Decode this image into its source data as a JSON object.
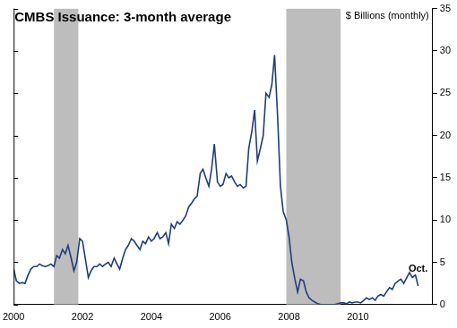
{
  "chart_data": {
    "type": "line",
    "title": "CMBS Issuance: 3-month average",
    "y_label": "$ Billions (monthly)",
    "annotation": "Oct.",
    "color": "#1f3d7a",
    "grid": false,
    "legend": false,
    "xlim": [
      2000,
      2012.17
    ],
    "xticks": [
      2000,
      2002,
      2004,
      2006,
      2008,
      2010
    ],
    "ylim": [
      0,
      35
    ],
    "yticks": [
      0,
      5,
      10,
      15,
      20,
      25,
      30,
      35
    ],
    "shaded_ranges": [
      [
        2001.17,
        2001.88
      ],
      [
        2007.92,
        2009.5
      ]
    ],
    "x": [
      2000,
      2000.08,
      2000.17,
      2000.25,
      2000.33,
      2000.42,
      2000.5,
      2000.58,
      2000.67,
      2000.75,
      2000.83,
      2000.92,
      2001,
      2001.08,
      2001.17,
      2001.25,
      2001.33,
      2001.42,
      2001.5,
      2001.58,
      2001.67,
      2001.75,
      2001.83,
      2001.92,
      2002,
      2002.08,
      2002.17,
      2002.25,
      2002.33,
      2002.42,
      2002.5,
      2002.58,
      2002.67,
      2002.75,
      2002.83,
      2002.92,
      2003,
      2003.08,
      2003.17,
      2003.25,
      2003.33,
      2003.42,
      2003.5,
      2003.58,
      2003.67,
      2003.75,
      2003.83,
      2003.92,
      2004,
      2004.08,
      2004.17,
      2004.25,
      2004.33,
      2004.42,
      2004.5,
      2004.58,
      2004.67,
      2004.75,
      2004.83,
      2004.92,
      2005,
      2005.08,
      2005.17,
      2005.25,
      2005.33,
      2005.42,
      2005.5,
      2005.58,
      2005.67,
      2005.75,
      2005.83,
      2005.92,
      2006,
      2006.08,
      2006.17,
      2006.25,
      2006.33,
      2006.42,
      2006.5,
      2006.58,
      2006.67,
      2006.75,
      2006.83,
      2006.92,
      2007,
      2007.08,
      2007.17,
      2007.25,
      2007.33,
      2007.42,
      2007.5,
      2007.58,
      2007.67,
      2007.75,
      2007.83,
      2007.92,
      2008,
      2008.08,
      2008.17,
      2008.25,
      2008.33,
      2008.42,
      2008.5,
      2008.58,
      2008.67,
      2008.75,
      2008.83,
      2008.92,
      2009,
      2009.08,
      2009.17,
      2009.25,
      2009.33,
      2009.42,
      2009.5,
      2009.58,
      2009.67,
      2009.75,
      2009.83,
      2009.92,
      2010,
      2010.08,
      2010.17,
      2010.25,
      2010.33,
      2010.42,
      2010.5,
      2010.58,
      2010.67,
      2010.75,
      2010.83,
      2010.92,
      2011,
      2011.08,
      2011.17,
      2011.25,
      2011.33,
      2011.42,
      2011.5,
      2011.58,
      2011.67,
      2011.75
    ],
    "values": [
      4.2,
      2.8,
      2.5,
      2.6,
      2.5,
      3.5,
      4.2,
      4.5,
      4.5,
      4.8,
      4.6,
      4.5,
      4.6,
      4.8,
      4.5,
      5.8,
      5.5,
      6.5,
      6.0,
      7.0,
      5.5,
      4.0,
      5.0,
      7.8,
      7.5,
      5.5,
      3.2,
      4.0,
      4.5,
      4.5,
      4.8,
      4.5,
      4.8,
      5.0,
      4.5,
      5.5,
      4.8,
      4.2,
      5.5,
      6.5,
      7.0,
      7.8,
      7.5,
      7.0,
      6.5,
      7.5,
      7.2,
      8.0,
      7.5,
      7.8,
      8.5,
      7.8,
      8.0,
      8.5,
      7.2,
      9.5,
      9.0,
      9.8,
      9.5,
      10.0,
      10.5,
      11.5,
      12.0,
      12.5,
      12.8,
      15.5,
      16.0,
      15.0,
      14.0,
      16.0,
      19.0,
      14.5,
      14.0,
      14.2,
      15.5,
      15.0,
      15.2,
      14.5,
      14.0,
      14.2,
      13.8,
      14.0,
      18.5,
      20.5,
      23.0,
      17.0,
      18.5,
      20.0,
      25.0,
      24.5,
      26.0,
      29.5,
      22.0,
      14.0,
      11.0,
      10.0,
      8.0,
      5.0,
      3.0,
      1.5,
      3.0,
      2.8,
      1.5,
      0.8,
      0.5,
      0.3,
      0.1,
      0,
      0,
      0,
      0,
      0,
      0,
      0.1,
      0.2,
      0.2,
      0.1,
      0.3,
      0.2,
      0.3,
      0.3,
      0.2,
      0.5,
      0.8,
      0.6,
      0.8,
      0.5,
      1.0,
      1.2,
      1.0,
      1.5,
      2.0,
      1.8,
      2.5,
      2.8,
      3.0,
      2.5,
      3.2,
      3.8,
      3.2,
      3.5,
      2.2
    ]
  }
}
